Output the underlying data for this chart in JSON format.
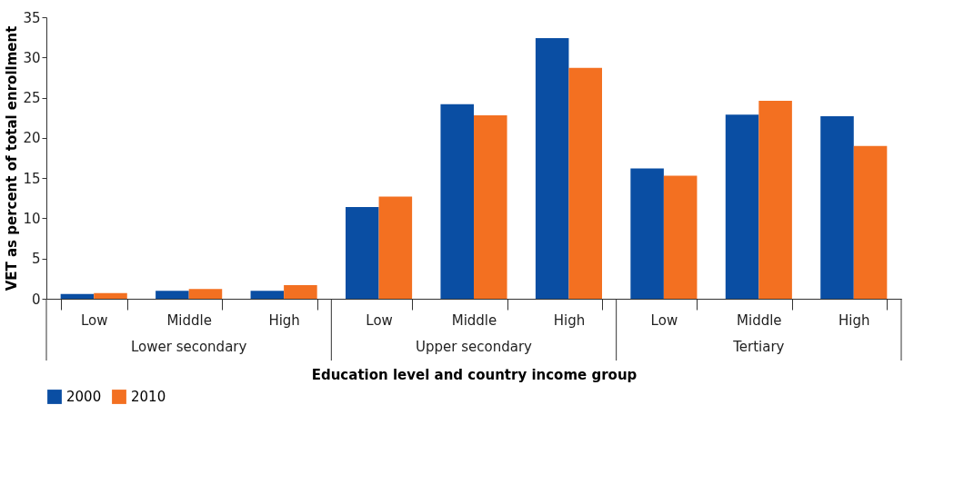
{
  "chart_data": {
    "type": "bar",
    "xlabel": "Education level and country income group",
    "ylabel": "VET as percent of total enrollment",
    "categories": [
      "Low",
      "Middle",
      "High",
      "Low",
      "Middle",
      "High",
      "Low",
      "Middle",
      "High"
    ],
    "series": [
      {
        "name": "2000",
        "color": "#0a4ea3",
        "values": [
          0.6,
          1.0,
          1.0,
          11.4,
          24.2,
          32.4,
          16.2,
          22.9,
          22.7
        ]
      },
      {
        "name": "2010",
        "color": "#f37021",
        "values": [
          0.7,
          1.2,
          1.7,
          12.7,
          22.8,
          28.7,
          15.3,
          24.6,
          19.0
        ]
      }
    ],
    "annotations": [
      "Lower secondary",
      "Upper secondary",
      "Tertiary"
    ],
    "ylim": [
      0,
      35
    ],
    "yticks": [
      0,
      5,
      10,
      15,
      20,
      25,
      30,
      35
    ],
    "grid": false,
    "legend": "bottom"
  }
}
